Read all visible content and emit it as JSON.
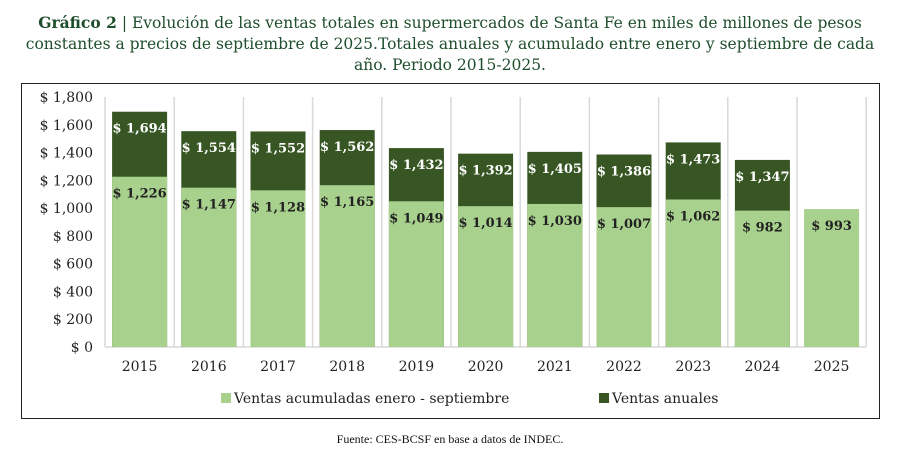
{
  "title": {
    "label": "Gráfico 2",
    "separator": " | ",
    "text": "Evolución de las ventas totales en supermercados de Santa Fe en miles de millones de pesos constantes a precios de septiembre de 2025.Totales anuales y acumulado entre enero y septiembre de cada año. Periodo 2015-2025."
  },
  "source": "Fuente: CES-BCSF en base a datos de INDEC.",
  "chart_data": {
    "type": "bar",
    "categories": [
      "2015",
      "2016",
      "2017",
      "2018",
      "2019",
      "2020",
      "2021",
      "2022",
      "2023",
      "2024",
      "2025"
    ],
    "series": [
      {
        "name": "Ventas acumuladas enero - septiembre",
        "color": "#a9d18e",
        "values": [
          1226,
          1147,
          1128,
          1165,
          1049,
          1014,
          1030,
          1007,
          1062,
          982,
          993
        ],
        "labels": [
          "$ 1,226",
          "$ 1,147",
          "$ 1,128",
          "$ 1,165",
          "$ 1,049",
          "$ 1,014",
          "$ 1,030",
          "$ 1,007",
          "$ 1,062",
          "$ 982",
          "$ 993"
        ]
      },
      {
        "name": "Ventas anuales",
        "color": "#375623",
        "values": [
          1694,
          1554,
          1552,
          1562,
          1432,
          1392,
          1405,
          1386,
          1473,
          1347,
          null
        ],
        "labels": [
          "$ 1,694",
          "$ 1,554",
          "$ 1,552",
          "$ 1,562",
          "$ 1,432",
          "$ 1,392",
          "$ 1,405",
          "$ 1,386",
          "$ 1,473",
          "$ 1,347",
          null
        ]
      }
    ],
    "ylim": [
      0,
      1800
    ],
    "yticks": [
      0,
      200,
      400,
      600,
      800,
      1000,
      1200,
      1400,
      1600,
      1800
    ],
    "ytick_labels": [
      "$ 0",
      "$ 200",
      "$ 400",
      "$ 600",
      "$ 800",
      "$ 1,000",
      "$ 1,200",
      "$ 1,400",
      "$ 1,600",
      "$ 1,800"
    ],
    "xlabel": "",
    "ylabel": "",
    "legend": "bottom",
    "grid": "vertical separators"
  }
}
